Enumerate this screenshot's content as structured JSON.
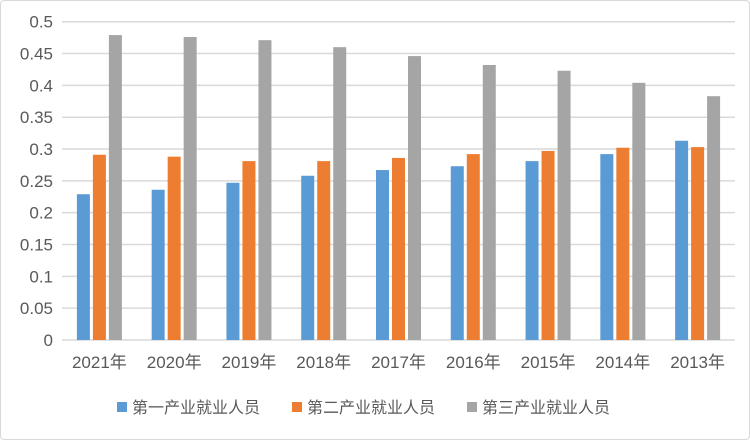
{
  "chart_data": {
    "type": "bar",
    "categories": [
      "2021年",
      "2020年",
      "2019年",
      "2018年",
      "2017年",
      "2016年",
      "2015年",
      "2014年",
      "2013年"
    ],
    "series": [
      {
        "name": "第一产业就业人员",
        "color": "#5b9bd5",
        "values": [
          0.229,
          0.236,
          0.247,
          0.258,
          0.267,
          0.273,
          0.281,
          0.292,
          0.313
        ]
      },
      {
        "name": "第二产业就业人员",
        "color": "#ed7d31",
        "values": [
          0.291,
          0.288,
          0.281,
          0.281,
          0.286,
          0.292,
          0.297,
          0.302,
          0.303
        ]
      },
      {
        "name": "第三产业就业人员",
        "color": "#a5a5a5",
        "values": [
          0.479,
          0.476,
          0.471,
          0.46,
          0.446,
          0.432,
          0.423,
          0.404,
          0.383
        ]
      }
    ],
    "yticks": [
      "0",
      "0.05",
      "0.1",
      "0.15",
      "0.2",
      "0.25",
      "0.3",
      "0.35",
      "0.4",
      "0.45",
      "0.5"
    ],
    "ylim": [
      0,
      0.5
    ],
    "grid": true,
    "legend": "bottom",
    "title": "",
    "xlabel": "",
    "ylabel": ""
  }
}
